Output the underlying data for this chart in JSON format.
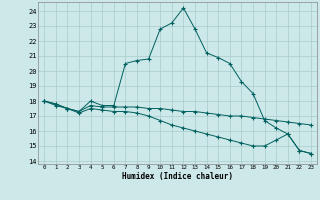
{
  "xlabel": "Humidex (Indice chaleur)",
  "background_color": "#cce8e8",
  "grid_color": "#aacccc",
  "line_color": "#006060",
  "xlim": [
    -0.5,
    23.5
  ],
  "ylim": [
    13.8,
    24.6
  ],
  "yticks": [
    14,
    15,
    16,
    17,
    18,
    19,
    20,
    21,
    22,
    23,
    24
  ],
  "xticks": [
    0,
    1,
    2,
    3,
    4,
    5,
    6,
    7,
    8,
    9,
    10,
    11,
    12,
    13,
    14,
    15,
    16,
    17,
    18,
    19,
    20,
    21,
    22,
    23
  ],
  "series": [
    {
      "x": [
        0,
        1,
        2,
        3,
        4,
        5,
        6,
        7,
        8,
        9,
        10,
        11,
        12,
        13,
        14,
        15,
        16,
        17,
        18,
        19,
        20,
        21,
        22,
        23
      ],
      "y": [
        18.0,
        17.8,
        17.5,
        17.3,
        18.0,
        17.7,
        17.7,
        20.5,
        20.7,
        20.8,
        22.8,
        23.2,
        24.2,
        22.8,
        21.2,
        20.9,
        20.5,
        19.3,
        18.5,
        16.7,
        16.2,
        15.8,
        14.7,
        14.5
      ]
    },
    {
      "x": [
        0,
        1,
        2,
        3,
        4,
        5,
        6,
        7,
        8,
        9,
        10,
        11,
        12,
        13,
        14,
        15,
        16,
        17,
        18,
        19,
        20,
        21,
        22,
        23
      ],
      "y": [
        18.0,
        17.8,
        17.5,
        17.3,
        17.7,
        17.6,
        17.6,
        17.6,
        17.6,
        17.5,
        17.5,
        17.4,
        17.3,
        17.3,
        17.2,
        17.1,
        17.0,
        17.0,
        16.9,
        16.8,
        16.7,
        16.6,
        16.5,
        16.4
      ]
    },
    {
      "x": [
        0,
        1,
        2,
        3,
        4,
        5,
        6,
        7,
        8,
        9,
        10,
        11,
        12,
        13,
        14,
        15,
        16,
        17,
        18,
        19,
        20,
        21,
        22,
        23
      ],
      "y": [
        18.0,
        17.7,
        17.5,
        17.2,
        17.5,
        17.4,
        17.3,
        17.3,
        17.2,
        17.0,
        16.7,
        16.4,
        16.2,
        16.0,
        15.8,
        15.6,
        15.4,
        15.2,
        15.0,
        15.0,
        15.4,
        15.8,
        14.7,
        14.5
      ]
    }
  ]
}
